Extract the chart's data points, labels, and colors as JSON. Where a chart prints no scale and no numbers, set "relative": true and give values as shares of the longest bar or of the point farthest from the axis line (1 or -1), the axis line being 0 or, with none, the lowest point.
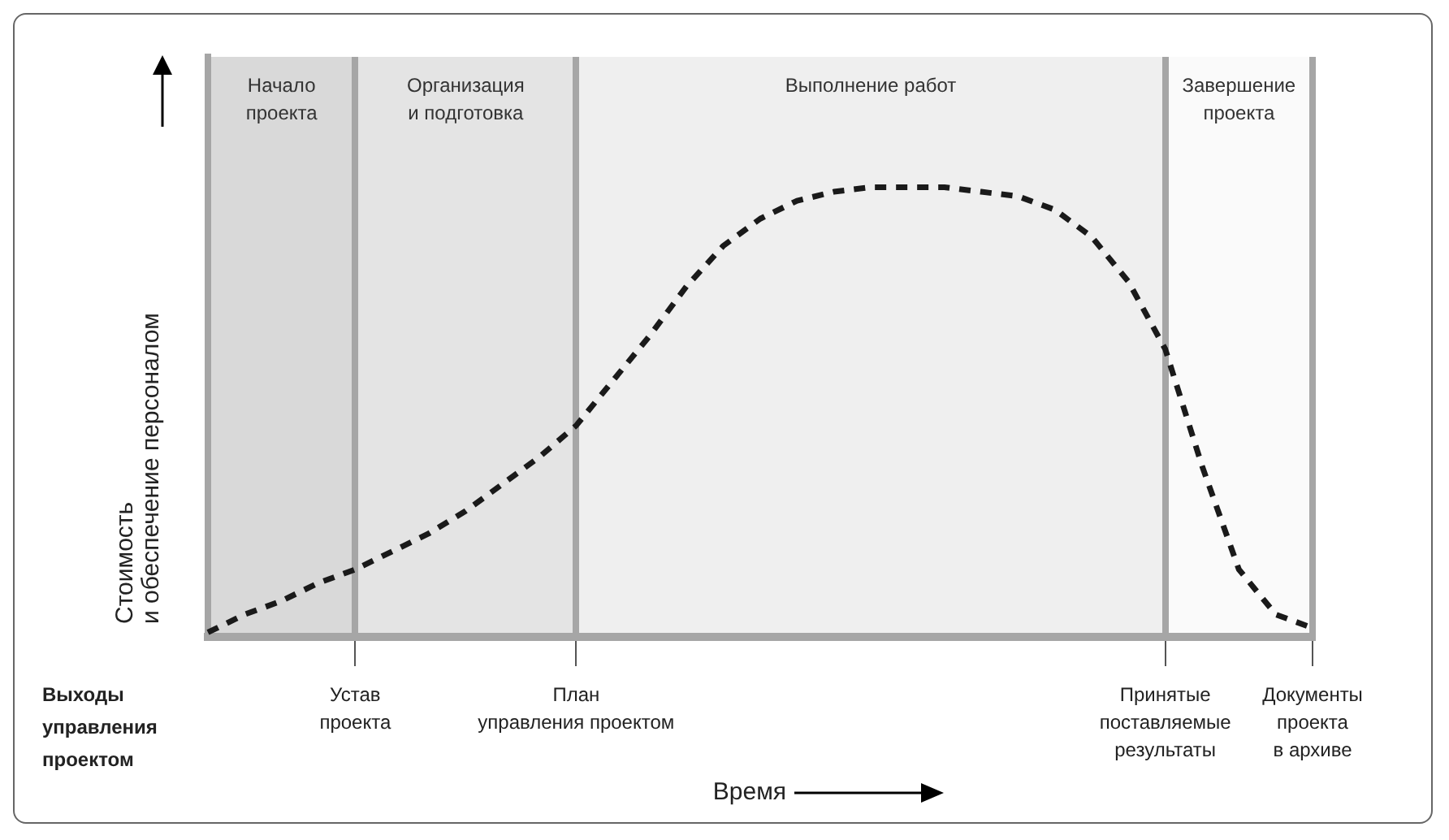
{
  "chart_data": {
    "type": "line",
    "relative": true,
    "xlabel": "Время",
    "ylabel": "Стоимость\nи обеспечение персоналом",
    "annotations": [
      "Начало\nпроекта",
      "Организация\nи подготовка",
      "Выполнение работ",
      "Завершение\nпроекта",
      "Выходы\nуправления\nпроектом"
    ],
    "tick_labels": "x",
    "grid": "x",
    "marker": "none",
    "line_style": "dashed",
    "color": "#1a1a1a",
    "categories": [
      null,
      null,
      null,
      null,
      "Устав\nпроекта",
      null,
      null,
      null,
      null,
      null,
      "План\nуправления проектом",
      null,
      null,
      null,
      null,
      null,
      null,
      null,
      null,
      null,
      null,
      null,
      null,
      null,
      null,
      null,
      "Принятые\nпоставляемые\nрезультаты",
      null,
      null,
      null,
      "Документы\nпроекта\nв архиве"
    ],
    "values": [
      0.01,
      0.05,
      0.08,
      0.12,
      0.15,
      0.19,
      0.23,
      0.28,
      0.34,
      0.4,
      0.47,
      0.57,
      0.67,
      0.78,
      0.87,
      0.93,
      0.97,
      0.99,
      1,
      1,
      1,
      0.99,
      0.98,
      0.95,
      0.89,
      0.79,
      0.64,
      0.38,
      0.15,
      0.05,
      0.02
    ]
  }
}
